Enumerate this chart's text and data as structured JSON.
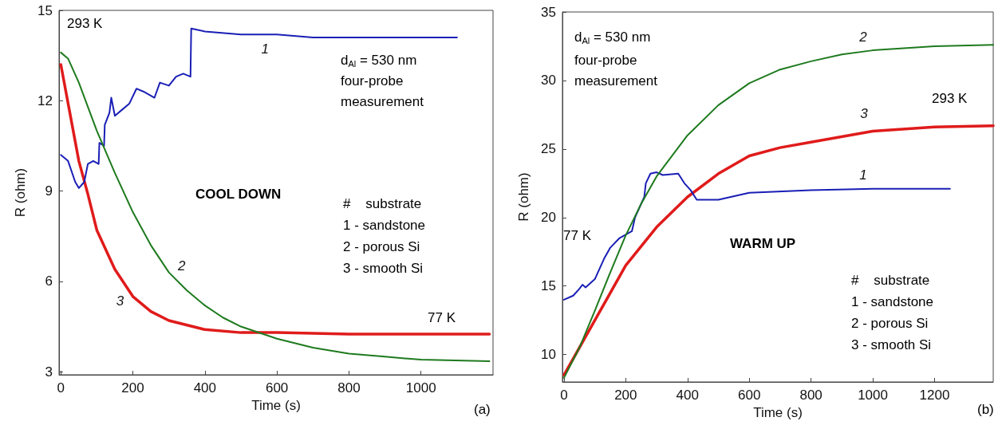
{
  "chart_data": [
    {
      "type": "line",
      "xlabel": "Time (s)",
      "ylabel": "R (ohm)",
      "xlim": [
        -5,
        1200
      ],
      "ylim": [
        2.9,
        15
      ],
      "xticks": [
        0,
        200,
        400,
        600,
        800,
        1000
      ],
      "yticks": [
        3,
        6,
        9,
        12,
        15
      ],
      "grid": false,
      "marker": "none",
      "line_style": "solid",
      "series": [
        {
          "name": "1",
          "color": "#1a1fb5",
          "x": [
            0,
            20,
            40,
            50,
            65,
            75,
            90,
            105,
            107,
            120,
            122,
            135,
            140,
            150,
            170,
            190,
            210,
            230,
            260,
            275,
            300,
            320,
            340,
            360,
            362,
            400,
            500,
            600,
            700,
            800,
            1100
          ],
          "values": [
            10.2,
            10.0,
            9.3,
            9.1,
            9.3,
            9.9,
            10.0,
            9.9,
            10.6,
            10.5,
            11.2,
            11.6,
            12.1,
            11.5,
            11.7,
            11.9,
            12.4,
            12.3,
            12.1,
            12.6,
            12.5,
            12.8,
            12.9,
            12.8,
            14.4,
            14.3,
            14.2,
            14.2,
            14.1,
            14.1,
            14.1
          ]
        },
        {
          "name": "2",
          "color": "#1e7a1e",
          "x": [
            0,
            20,
            50,
            100,
            150,
            200,
            250,
            300,
            350,
            400,
            450,
            500,
            600,
            700,
            800,
            900,
            1000,
            1190
          ],
          "values": [
            13.6,
            13.4,
            12.6,
            11.0,
            9.6,
            8.3,
            7.2,
            6.3,
            5.7,
            5.2,
            4.8,
            4.5,
            4.1,
            3.8,
            3.6,
            3.5,
            3.4,
            3.35
          ]
        },
        {
          "name": "3",
          "color": "#e01b1b",
          "x": [
            0,
            25,
            50,
            75,
            100,
            150,
            200,
            250,
            300,
            400,
            500,
            600,
            800,
            1000,
            1190
          ],
          "values": [
            13.2,
            11.6,
            10.0,
            8.9,
            7.7,
            6.4,
            5.5,
            5.0,
            4.7,
            4.4,
            4.3,
            4.3,
            4.25,
            4.25,
            4.25
          ]
        }
      ],
      "annotations": [
        "293 K",
        "d$_{Al}$ = 530 nm",
        "four-probe measurement",
        "COOL DOWN",
        "#    substrate",
        "1 - sandstone",
        "2 - porous Si",
        "3 - smooth Si",
        "77 K",
        "(a)"
      ]
    },
    {
      "type": "line",
      "xlabel": "Time (s)",
      "ylabel": "R (ohm)",
      "xlim": [
        -5,
        1390
      ],
      "ylim": [
        8,
        35
      ],
      "xticks": [
        0,
        200,
        400,
        600,
        800,
        1000,
        1200
      ],
      "yticks": [
        10,
        15,
        20,
        25,
        30,
        35
      ],
      "grid": false,
      "marker": "none",
      "line_style": "solid",
      "series": [
        {
          "name": "1",
          "color": "#1a1fb5",
          "x": [
            0,
            30,
            50,
            60,
            70,
            100,
            130,
            150,
            180,
            220,
            230,
            260,
            265,
            280,
            300,
            320,
            370,
            390,
            410,
            430,
            500,
            600,
            800,
            1000,
            1250
          ],
          "values": [
            14.0,
            14.3,
            14.8,
            15.1,
            14.9,
            15.5,
            17.0,
            17.8,
            18.5,
            19.0,
            20.0,
            21.5,
            22.5,
            23.2,
            23.3,
            23.1,
            23.2,
            22.5,
            22.0,
            21.3,
            21.3,
            21.8,
            22.0,
            22.1,
            22.1
          ]
        },
        {
          "name": "2",
          "color": "#1e7a1e",
          "x": [
            0,
            50,
            100,
            150,
            200,
            250,
            300,
            400,
            500,
            600,
            700,
            800,
            900,
            1000,
            1200,
            1390
          ],
          "values": [
            8.3,
            10.5,
            13.2,
            16.0,
            18.7,
            21.0,
            23.0,
            26.0,
            28.2,
            29.8,
            30.8,
            31.4,
            31.9,
            32.2,
            32.5,
            32.6
          ]
        },
        {
          "name": "3",
          "color": "#e01b1b",
          "x": [
            0,
            100,
            200,
            300,
            400,
            500,
            600,
            700,
            800,
            1000,
            1200,
            1390
          ],
          "values": [
            8.5,
            12.5,
            16.5,
            19.3,
            21.5,
            23.2,
            24.5,
            25.1,
            25.5,
            26.3,
            26.6,
            26.7
          ]
        }
      ],
      "annotations": [
        "d$_{Al}$ = 530 nm",
        "four-probe measurement",
        "WARM UP",
        "293 K",
        "77 K",
        "#    substrate",
        "1 - sandstone",
        "2 - porous Si",
        "3 - smooth Si",
        "(b)"
      ]
    }
  ]
}
